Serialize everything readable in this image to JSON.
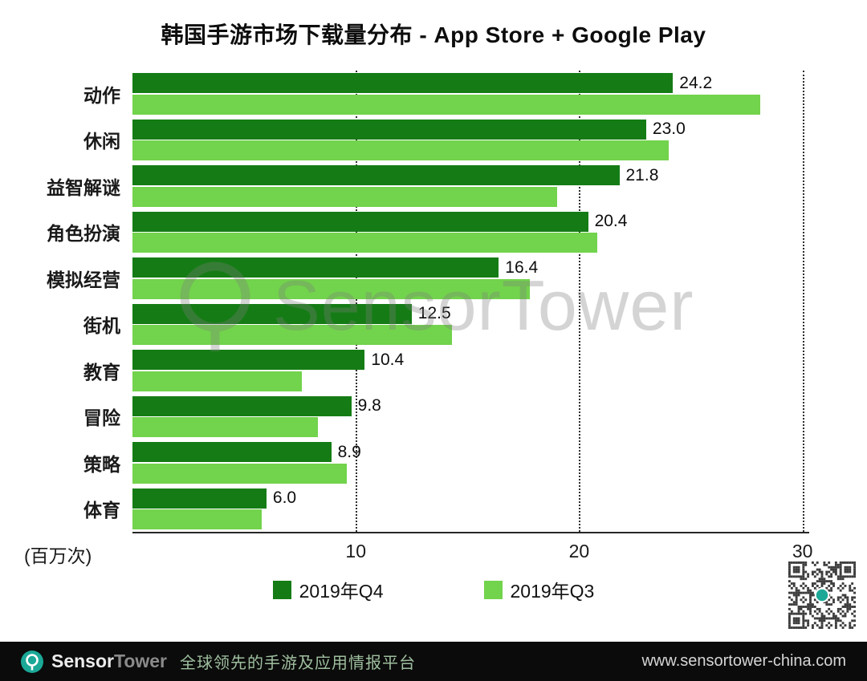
{
  "title": "韩国手游市场下载量分布 - App Store + Google Play",
  "chart_data": {
    "type": "bar",
    "orientation": "horizontal",
    "title": "韩国手游市场下载量分布 - App Store + Google Play",
    "categories": [
      "动作",
      "休闲",
      "益智解谜",
      "角色扮演",
      "模拟经营",
      "街机",
      "教育",
      "冒险",
      "策略",
      "体育"
    ],
    "series": [
      {
        "name": "2019年Q4",
        "color": "#157c15",
        "values": [
          24.2,
          23.0,
          21.8,
          20.4,
          16.4,
          12.5,
          10.4,
          9.8,
          8.9,
          6.0
        ],
        "value_labels": [
          "24.2",
          "23.0",
          "21.8",
          "20.4",
          "16.4",
          "12.5",
          "10.4",
          "9.8",
          "8.9",
          "6.0"
        ]
      },
      {
        "name": "2019年Q3",
        "color": "#72d34c",
        "values": [
          28.1,
          24.0,
          19.0,
          20.8,
          17.8,
          14.3,
          7.6,
          8.3,
          9.6,
          5.8
        ],
        "value_labels": []
      }
    ],
    "xlabel": "(百万次)",
    "xticks": [
      10,
      20,
      30
    ],
    "xlim": [
      0,
      30.3
    ],
    "grid": "dotted-vertical",
    "legend_position": "bottom"
  },
  "axis": {
    "unit_label": "(百万次)"
  },
  "legend": {
    "items": [
      {
        "label": "2019年Q4",
        "color": "#157c15"
      },
      {
        "label": "2019年Q3",
        "color": "#72d34c"
      }
    ]
  },
  "watermark": {
    "text": "SensorTower"
  },
  "footer": {
    "brand_part1": "Sensor",
    "brand_part2": "Tower",
    "tagline": "全球领先的手游及应用情报平台",
    "url": "www.sensortower-china.com"
  }
}
